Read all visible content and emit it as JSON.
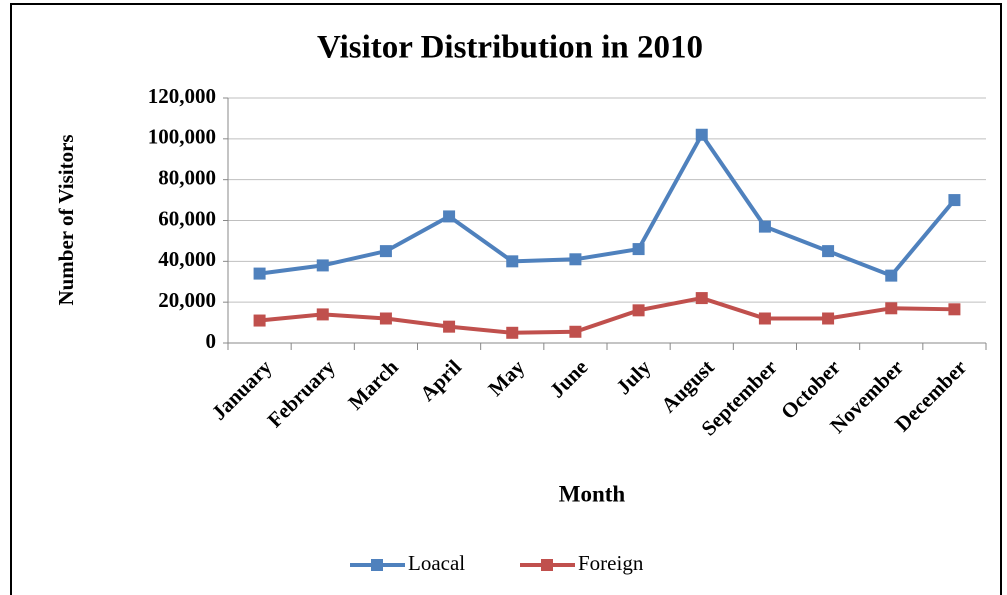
{
  "chart_data": {
    "type": "line",
    "title": "Visitor Distribution in 2010",
    "x_label": "Month",
    "y_label": "Number of Visitors",
    "categories": [
      "January",
      "February",
      "March",
      "April",
      "May",
      "June",
      "July",
      "August",
      "September",
      "October",
      "November",
      "December"
    ],
    "series": [
      {
        "name": "Loacal",
        "color": "#4f81bd",
        "values": [
          34000,
          38000,
          45000,
          62000,
          40000,
          41000,
          46000,
          102000,
          57000,
          45000,
          33000,
          70000
        ]
      },
      {
        "name": "Foreign",
        "color": "#c0504d",
        "values": [
          11000,
          14000,
          12000,
          8000,
          5000,
          5500,
          16000,
          22000,
          12000,
          12000,
          17000,
          16500
        ]
      }
    ],
    "ylim": [
      0,
      120000
    ],
    "yticks": [
      0,
      {
        "value": 20000,
        "label": "20,000"
      },
      {
        "value": 40000,
        "label": "40,000"
      },
      {
        "value": 60000,
        "label": "60,000"
      },
      {
        "value": 80000,
        "label": "80,000"
      },
      {
        "value": 100000,
        "label": "100,000"
      },
      {
        "value": 120000,
        "label": "120,000"
      }
    ],
    "grid": true,
    "legend": "bottom"
  }
}
